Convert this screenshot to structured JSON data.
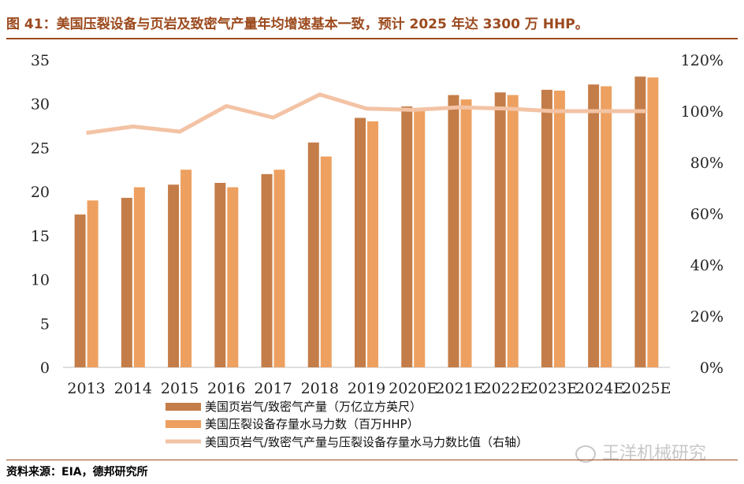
{
  "header": {
    "title": "图 41：美国压裂设备与页岩及致密气产量年均增速基本一致，预计 2025 年达 3300 万 HHP。"
  },
  "footer": {
    "source": "资料来源：EIA，德邦研究所",
    "watermark": "王洋机械研究"
  },
  "colors": {
    "title": "#9C4A1E",
    "series_gas": "#C47D48",
    "series_hhp": "#EDA060",
    "series_ratio": "#F3C3A5"
  },
  "chart_data": {
    "type": "bar",
    "categories": [
      "2013",
      "2014",
      "2015",
      "2016",
      "2017",
      "2018",
      "2019",
      "2020E",
      "2021E",
      "2022E",
      "2023E",
      "2024E",
      "2025E"
    ],
    "series": [
      {
        "name": "美国页岩气/致密气产量（万亿立方英尺）",
        "type": "bar",
        "axis": "left",
        "values": [
          17.4,
          19.3,
          20.8,
          21.0,
          22.0,
          25.6,
          28.4,
          29.7,
          31.0,
          31.3,
          31.6,
          32.2,
          33.1
        ]
      },
      {
        "name": "美国压裂设备存量水马力数（百万HHP）",
        "type": "bar",
        "axis": "left",
        "values": [
          19.0,
          20.5,
          22.5,
          20.5,
          22.5,
          24.0,
          28.0,
          29.5,
          30.5,
          31.0,
          31.5,
          32.0,
          33.0
        ]
      },
      {
        "name": "美国页岩气/致密气产量与压裂设备存量水马力数比值（右轴）",
        "type": "line",
        "axis": "right",
        "values": [
          0.915,
          0.94,
          0.92,
          1.02,
          0.975,
          1.065,
          1.01,
          1.005,
          1.015,
          1.01,
          1.0,
          1.0,
          1.0
        ]
      }
    ],
    "left_axis": {
      "min": 0,
      "max": 35,
      "ticks": [
        "0",
        "5",
        "10",
        "15",
        "20",
        "25",
        "30",
        "35"
      ]
    },
    "right_axis": {
      "min": 0,
      "max": 1.2,
      "ticks": [
        "0%",
        "20%",
        "40%",
        "60%",
        "80%",
        "100%",
        "120%"
      ]
    },
    "grid": false,
    "legend_position": "bottom"
  }
}
